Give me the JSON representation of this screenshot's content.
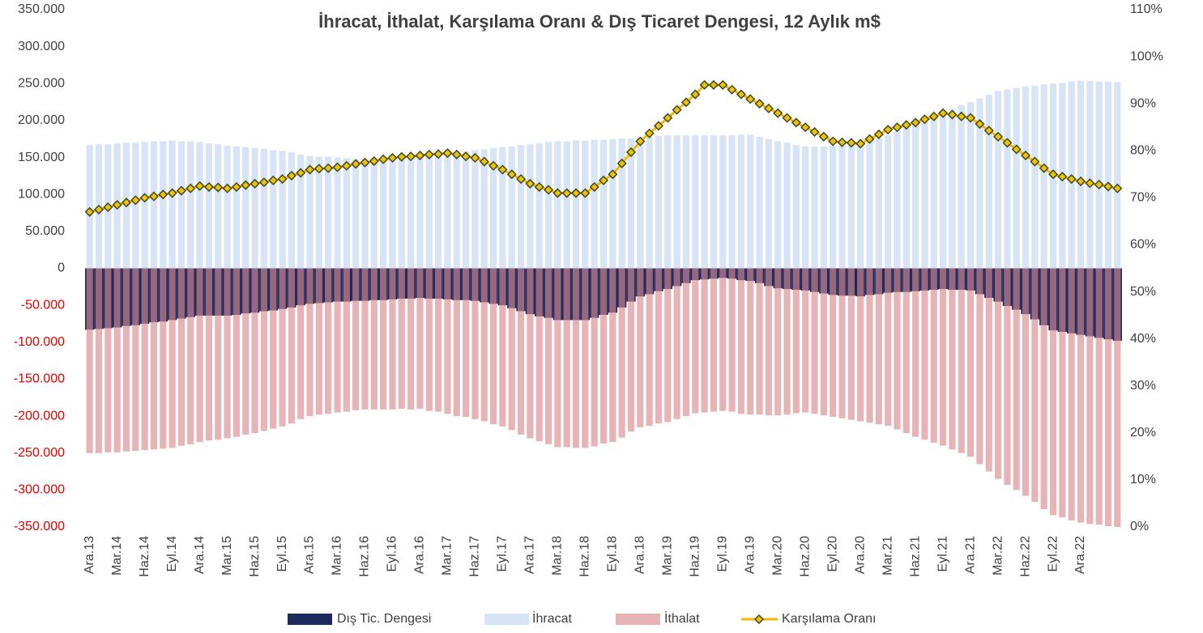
{
  "chart_data": {
    "type": "bar",
    "title": "İhracat, İthalat, Karşılama Oranı & Dış Ticaret Dengesi, 12 Aylık m$",
    "categories": [
      "Ara.13",
      null,
      null,
      "Mar.14",
      null,
      null,
      "Haz.14",
      null,
      null,
      "Eyl.14",
      null,
      null,
      "Ara.14",
      null,
      null,
      "Mar.15",
      null,
      null,
      "Haz.15",
      null,
      null,
      "Eyl.15",
      null,
      null,
      "Ara.15",
      null,
      null,
      "Mar.16",
      null,
      null,
      "Haz.16",
      null,
      null,
      "Eyl.16",
      null,
      null,
      "Ara.16",
      null,
      null,
      "Mar.17",
      null,
      null,
      "Haz.17",
      null,
      null,
      "Eyl.17",
      null,
      null,
      "Ara.17",
      null,
      null,
      "Mar.18",
      null,
      null,
      "Haz.18",
      null,
      null,
      "Eyl.18",
      null,
      null,
      "Ara.18",
      null,
      null,
      "Mar.19",
      null,
      null,
      "Haz.19",
      null,
      null,
      "Eyl.19",
      null,
      null,
      "Ara.19",
      null,
      null,
      "Mar.20",
      null,
      null,
      "Haz.20",
      null,
      null,
      "Eyl.20",
      null,
      null,
      "Ara.20",
      null,
      null,
      "Mar.21",
      null,
      null,
      "Haz.21",
      null,
      null,
      "Eyl.21",
      null,
      null,
      "Ara.21",
      null,
      null,
      "Mar.22",
      null,
      null,
      "Haz.22",
      null,
      null,
      "Eyl.22",
      null,
      null,
      "Ara.22",
      null,
      null,
      null,
      null
    ],
    "series": [
      {
        "name": "Dış Tic. Dengesi",
        "color": "#1f2a5c",
        "type": "bar",
        "values": [
          -83000,
          -82000,
          -81000,
          -80000,
          -78000,
          -77000,
          -75000,
          -73000,
          -72000,
          -70000,
          -68000,
          -66000,
          -64000,
          -64000,
          -64000,
          -64000,
          -63000,
          -61000,
          -60000,
          -58000,
          -57000,
          -55000,
          -53000,
          -50000,
          -48000,
          -47000,
          -46000,
          -45000,
          -45000,
          -44000,
          -44000,
          -43000,
          -43000,
          -42000,
          -41000,
          -41000,
          -40000,
          -41000,
          -41000,
          -42000,
          -43000,
          -43000,
          -44000,
          -46000,
          -48000,
          -50000,
          -54000,
          -58000,
          -62000,
          -65000,
          -67000,
          -70000,
          -70000,
          -70000,
          -70000,
          -67000,
          -63000,
          -60000,
          -53000,
          -45000,
          -38000,
          -35000,
          -31000,
          -28000,
          -24000,
          -20000,
          -16000,
          -15000,
          -14000,
          -13000,
          -14000,
          -16000,
          -17000,
          -20000,
          -24000,
          -27000,
          -28000,
          -29000,
          -30000,
          -32000,
          -34000,
          -36000,
          -37000,
          -37000,
          -38000,
          -36000,
          -35000,
          -33000,
          -32000,
          -32000,
          -31000,
          -30000,
          -29000,
          -28000,
          -29000,
          -29000,
          -30000,
          -35000,
          -40000,
          -45000,
          -51000,
          -56000,
          -62000,
          -69000,
          -77000,
          -84000,
          -86000,
          -88000,
          -90000,
          -92000,
          -94000,
          -96000,
          -98000
        ]
      },
      {
        "name": "İhracat",
        "color": "#d6e4f5",
        "type": "bar",
        "values": [
          167000,
          168000,
          168000,
          169000,
          170000,
          170000,
          171000,
          172000,
          172000,
          173000,
          172000,
          172000,
          171000,
          169000,
          168000,
          166000,
          165000,
          164000,
          163000,
          162000,
          160000,
          159000,
          157000,
          154000,
          152000,
          151000,
          151000,
          150000,
          149000,
          148000,
          147000,
          148000,
          148000,
          149000,
          149000,
          150000,
          150000,
          152000,
          153000,
          155000,
          157000,
          158000,
          160000,
          161000,
          163000,
          164000,
          165000,
          167000,
          168000,
          169000,
          171000,
          172000,
          172000,
          173000,
          173000,
          174000,
          174000,
          175000,
          176000,
          176000,
          177000,
          178000,
          179000,
          180000,
          180000,
          180000,
          180000,
          180000,
          180000,
          180000,
          180000,
          181000,
          181000,
          178000,
          175000,
          172000,
          170000,
          167000,
          165000,
          165000,
          165000,
          165000,
          166000,
          168000,
          169000,
          173000,
          176000,
          180000,
          186000,
          191000,
          197000,
          202000,
          207000,
          212000,
          216000,
          221000,
          225000,
          230000,
          235000,
          240000,
          242000,
          244000,
          246000,
          247000,
          249000,
          250000,
          251000,
          253000,
          254000,
          254000,
          253000,
          253000,
          252000
        ]
      },
      {
        "name": "İthalat",
        "color": "#d98a8f",
        "type": "bar",
        "values": [
          -250000,
          -250000,
          -249000,
          -249000,
          -248000,
          -247000,
          -246000,
          -245000,
          -244000,
          -243000,
          -240000,
          -238000,
          -235000,
          -233000,
          -232000,
          -230000,
          -228000,
          -225000,
          -223000,
          -220000,
          -217000,
          -214000,
          -210000,
          -204000,
          -200000,
          -198000,
          -197000,
          -195000,
          -194000,
          -192000,
          -191000,
          -191000,
          -191000,
          -191000,
          -190000,
          -191000,
          -190000,
          -193000,
          -194000,
          -197000,
          -200000,
          -201000,
          -204000,
          -207000,
          -211000,
          -214000,
          -219000,
          -225000,
          -230000,
          -234000,
          -238000,
          -242000,
          -242000,
          -243000,
          -243000,
          -241000,
          -237000,
          -235000,
          -229000,
          -221000,
          -215000,
          -213000,
          -210000,
          -208000,
          -204000,
          -200000,
          -196000,
          -195000,
          -194000,
          -193000,
          -194000,
          -197000,
          -198000,
          -198000,
          -199000,
          -199000,
          -198000,
          -196000,
          -195000,
          -197000,
          -199000,
          -201000,
          -203000,
          -205000,
          -207000,
          -209000,
          -211000,
          -213000,
          -218000,
          -223000,
          -228000,
          -232000,
          -236000,
          -240000,
          -245000,
          -250000,
          -255000,
          -265000,
          -275000,
          -285000,
          -293000,
          -300000,
          -308000,
          -316000,
          -326000,
          -334000,
          -337000,
          -341000,
          -344000,
          -346000,
          -347000,
          -349000,
          -350000
        ]
      },
      {
        "name": "Karşılama Oranı",
        "color": "#f5b800",
        "marker_color": "#f2c200",
        "marker_edge": "#3a4a2a",
        "type": "line",
        "axis": "y2",
        "values": [
          67,
          67.5,
          68,
          68.5,
          69,
          69.5,
          70,
          70.3,
          70.7,
          71,
          71.5,
          72,
          72.5,
          72.3,
          72.2,
          72,
          72.3,
          72.7,
          73,
          73.3,
          73.7,
          74,
          74.7,
          75.3,
          76,
          76.2,
          76.3,
          76.5,
          76.8,
          77.2,
          77.5,
          77.8,
          78.2,
          78.5,
          78.7,
          78.8,
          79,
          79.2,
          79.3,
          79.5,
          79.2,
          78.8,
          78.5,
          77.7,
          76.8,
          76,
          75,
          74,
          73,
          72.3,
          71.7,
          71,
          71,
          71,
          71,
          72.3,
          73.7,
          75,
          77.3,
          79.7,
          82,
          83.7,
          85.3,
          87,
          88.7,
          90.3,
          92,
          94,
          94,
          94,
          93,
          92,
          91,
          90,
          89,
          88,
          87,
          86,
          85,
          84,
          83,
          82,
          81.8,
          81.7,
          81.5,
          82.5,
          83.5,
          84.5,
          85,
          85.5,
          86,
          86.7,
          87.3,
          88,
          87.7,
          87.3,
          87,
          85.7,
          84.3,
          83,
          81.7,
          80.3,
          79,
          77.7,
          76.3,
          75,
          74.5,
          74,
          73.5,
          73.1,
          72.8,
          72.4,
          72
        ]
      }
    ],
    "ylim": [
      -350000,
      350000
    ],
    "yticks": [
      {
        "value": -350000,
        "label": "-350.000"
      },
      {
        "value": -300000,
        "label": "-300.000"
      },
      {
        "value": -250000,
        "label": "-250.000"
      },
      {
        "value": -200000,
        "label": "-200.000"
      },
      {
        "value": -150000,
        "label": "-150.000"
      },
      {
        "value": -100000,
        "label": "-100.000"
      },
      {
        "value": -50000,
        "label": "-50.000"
      },
      0,
      {
        "value": 50000,
        "label": "50.000"
      },
      {
        "value": 100000,
        "label": "100.000"
      },
      {
        "value": 150000,
        "label": "150.000"
      },
      {
        "value": 200000,
        "label": "200.000"
      },
      {
        "value": 250000,
        "label": "250.000"
      },
      {
        "value": 300000,
        "label": "300.000"
      },
      {
        "value": 350000,
        "label": "350.000"
      }
    ],
    "y2lim": [
      0,
      110
    ],
    "y2ticks": [
      {
        "value": 0,
        "label": "0%"
      },
      {
        "value": 10,
        "label": "10%"
      },
      {
        "value": 20,
        "label": "20%"
      },
      {
        "value": 30,
        "label": "30%"
      },
      {
        "value": 40,
        "label": "40%"
      },
      {
        "value": 50,
        "label": "50%"
      },
      {
        "value": 60,
        "label": "60%"
      },
      {
        "value": 70,
        "label": "70%"
      },
      {
        "value": 80,
        "label": "80%"
      },
      {
        "value": 90,
        "label": "90%"
      },
      {
        "value": 100,
        "label": "100%"
      },
      {
        "value": 110,
        "label": "110%"
      }
    ],
    "negative_tick_color": "#e00000",
    "legend": "bottom"
  }
}
